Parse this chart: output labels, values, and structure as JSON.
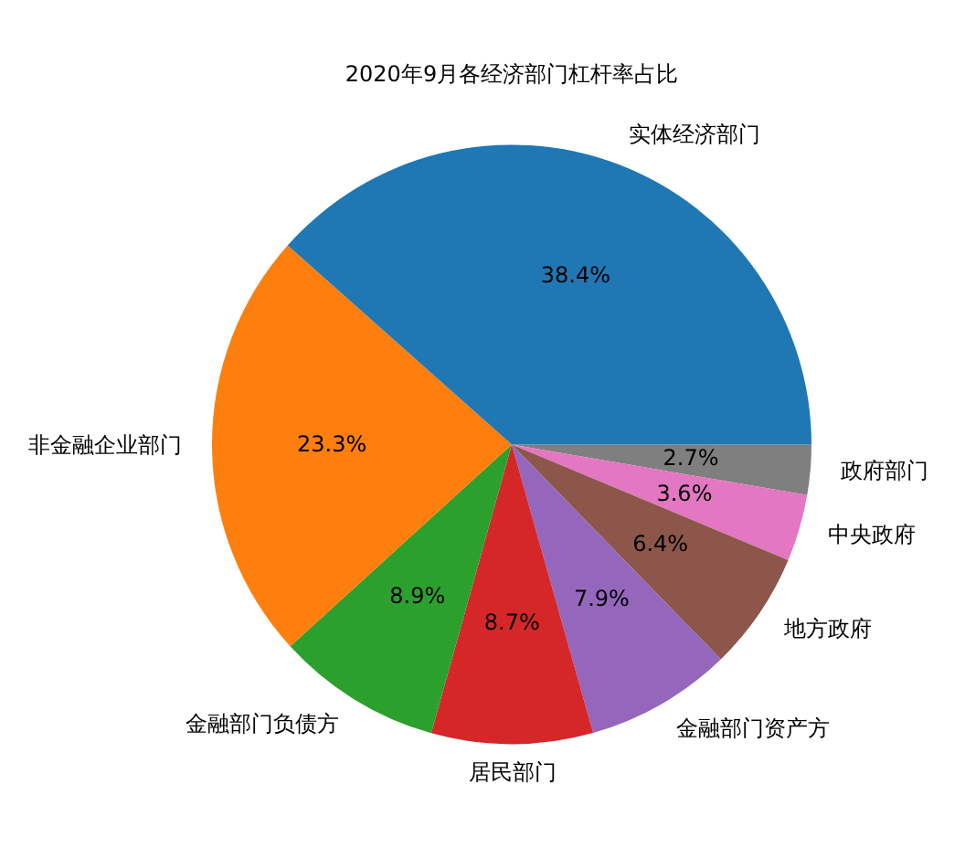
{
  "chart_data": {
    "type": "pie",
    "title": "2020年9月各经济部门杠杆率占比",
    "categories": [
      "实体经济部门",
      "非金融企业部门",
      "金融部门负债方",
      "居民部门",
      "金融部门资产方",
      "地方政府",
      "中央政府",
      "政府部门"
    ],
    "values": [
      38.4,
      23.3,
      8.9,
      8.7,
      7.9,
      6.4,
      3.6,
      2.7
    ],
    "value_labels": [
      "38.4%",
      "23.3%",
      "8.9%",
      "8.7%",
      "7.9%",
      "6.4%",
      "3.6%",
      "2.7%"
    ],
    "colors": [
      "#1f77b4",
      "#ff7f0e",
      "#2ca02c",
      "#d62728",
      "#9467bd",
      "#8c564b",
      "#e377c2",
      "#7f7f7f"
    ]
  }
}
